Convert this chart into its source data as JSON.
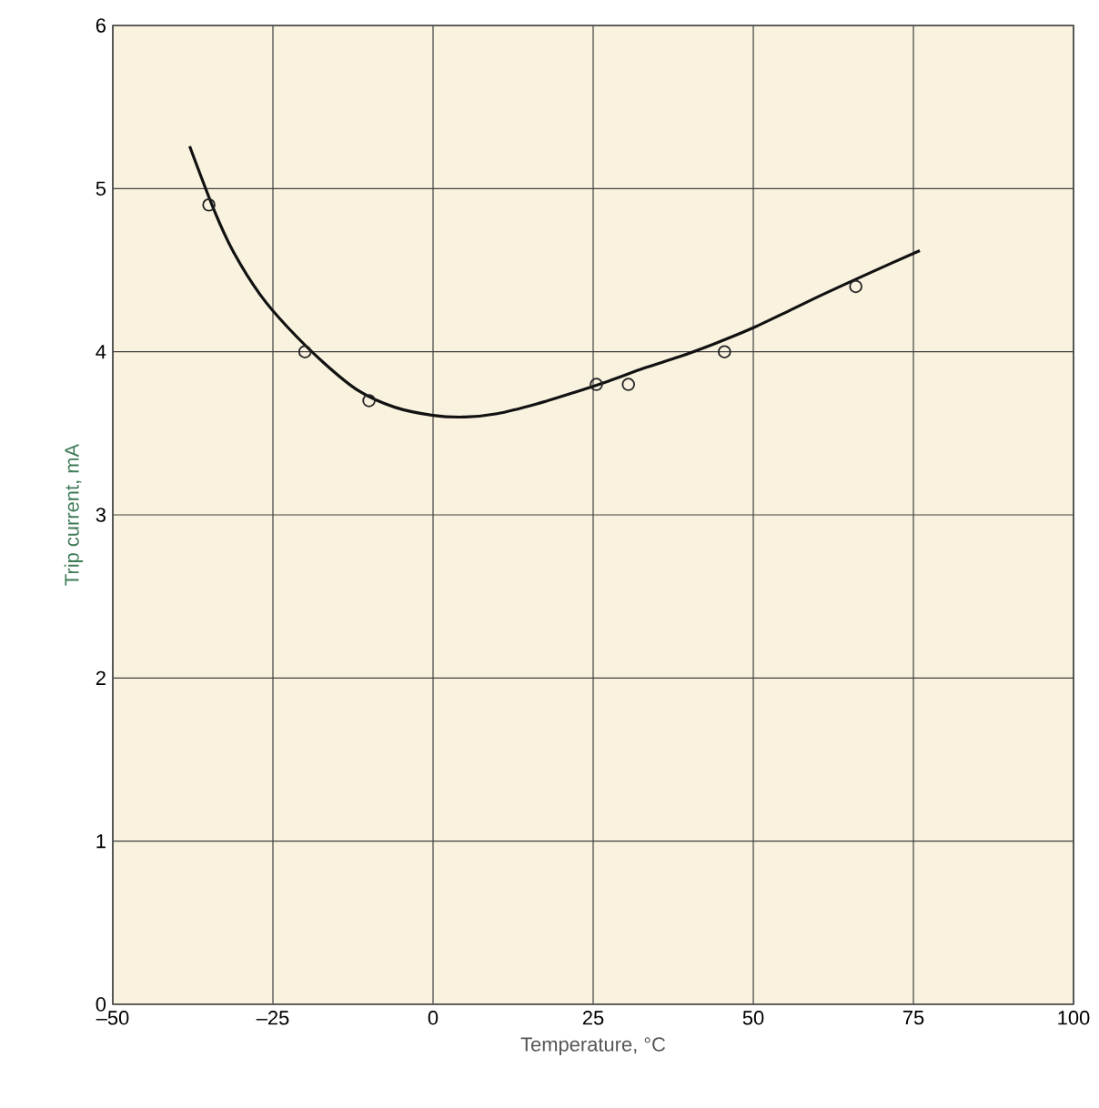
{
  "chart_data": {
    "type": "line",
    "xlabel": "Temperature, °C",
    "ylabel": "Trip current, mA",
    "xlim": [
      -50,
      100
    ],
    "ylim": [
      0,
      6
    ],
    "xticks": [
      {
        "value": -50,
        "label": "–50"
      },
      {
        "value": -25,
        "label": "–25"
      },
      0,
      25,
      50,
      75,
      100
    ],
    "yticks": [
      0,
      1,
      2,
      3,
      4,
      5,
      6
    ],
    "grid": true,
    "series": [
      {
        "type": "scatter",
        "marker": "circle",
        "color": "#222222",
        "x": [
          -35,
          -20,
          -10,
          25.5,
          30.5,
          45.5,
          66
        ],
        "values": [
          4.9,
          4.0,
          3.7,
          3.8,
          3.8,
          4.0,
          4.4
        ]
      },
      {
        "marker": "none",
        "color": "#111111",
        "x": [
          -38,
          -34,
          -31,
          -27,
          -22.7,
          -17,
          -11.6,
          -6,
          0,
          5,
          10,
          16.2,
          22,
          27.4,
          33,
          38.5,
          44,
          49.6,
          55,
          60.8,
          68,
          76
        ],
        "values": [
          5.26,
          4.85,
          4.6,
          4.35,
          4.15,
          3.93,
          3.76,
          3.66,
          3.61,
          3.6,
          3.62,
          3.68,
          3.75,
          3.82,
          3.9,
          3.97,
          4.05,
          4.14,
          4.24,
          4.35,
          4.48,
          4.62
        ]
      }
    ]
  }
}
